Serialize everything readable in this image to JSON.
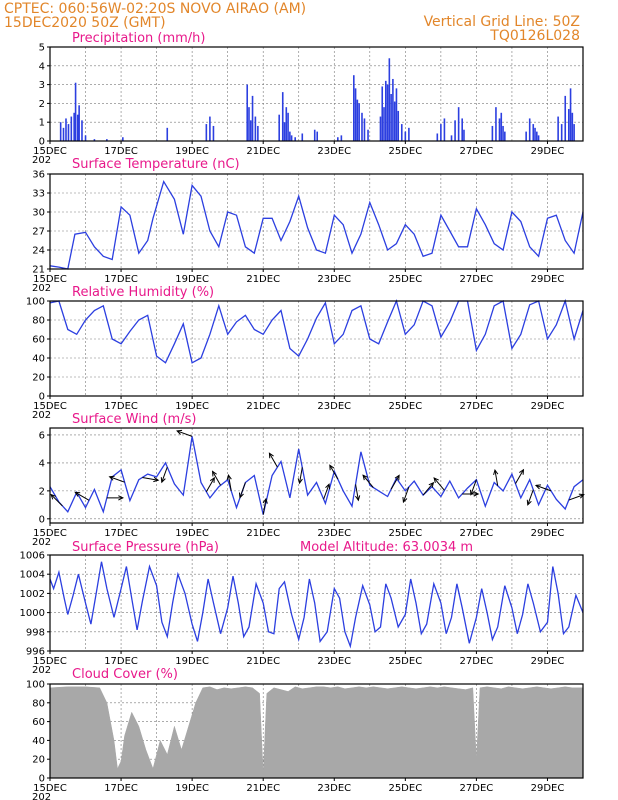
{
  "header": {
    "left_line1": "CPTEC:   060:56W-02:20S   NOVO AIRAO (AM)",
    "left_line2": "15DEC2020 50Z (GMT)",
    "right_line1": "Vertical Grid Line: 50Z",
    "right_line2": "TQ0126L028"
  },
  "colors": {
    "header": "#e2862a",
    "title": "#e8198b",
    "series": "#2c3fe0",
    "cloud": "#a8a8a8",
    "wind_arrow": "#000000"
  },
  "x_axis": {
    "labels": [
      "15DEC",
      "17DEC",
      "19DEC",
      "21DEC",
      "23DEC",
      "25DEC",
      "27DEC",
      "29DEC"
    ],
    "label_positions_days": [
      0,
      2,
      4,
      6,
      8,
      10,
      12,
      14
    ],
    "range_days": [
      0,
      15
    ],
    "corner_label": "202"
  },
  "chart_data": [
    {
      "type": "bar",
      "title": "Precipitation (mm/h)",
      "ylim": [
        0,
        5
      ],
      "yticks": [
        0,
        1,
        2,
        3,
        4,
        5
      ],
      "x_units": "days since 15DEC2020",
      "x": [
        0.3,
        0.38,
        0.45,
        0.52,
        0.6,
        0.68,
        0.72,
        0.78,
        0.82,
        0.9,
        1.0,
        1.25,
        1.6,
        2.05,
        3.3,
        4.4,
        4.5,
        4.6,
        5.55,
        5.6,
        5.65,
        5.7,
        5.78,
        5.85,
        6.45,
        6.55,
        6.6,
        6.65,
        6.7,
        6.75,
        6.8,
        6.9,
        7.1,
        7.45,
        7.52,
        8.1,
        8.2,
        8.55,
        8.6,
        8.65,
        8.7,
        8.78,
        8.85,
        8.95,
        9.3,
        9.35,
        9.4,
        9.45,
        9.5,
        9.55,
        9.6,
        9.65,
        9.7,
        9.75,
        9.8,
        9.9,
        10.0,
        10.1,
        10.9,
        11.0,
        11.1,
        11.3,
        11.4,
        11.5,
        11.6,
        11.65,
        12.45,
        12.55,
        12.65,
        12.7,
        12.75,
        12.8,
        13.4,
        13.5,
        13.6,
        13.65,
        13.7,
        13.75,
        14.3,
        14.4,
        14.5,
        14.6,
        14.65,
        14.7,
        14.75
      ],
      "values": [
        1.0,
        0.7,
        1.2,
        0.9,
        1.3,
        1.5,
        3.1,
        1.4,
        1.9,
        1.1,
        0.3,
        0.1,
        0.1,
        0.2,
        0.7,
        0.9,
        1.3,
        0.8,
        3.0,
        1.8,
        1.1,
        2.4,
        1.3,
        0.8,
        1.4,
        2.6,
        1.0,
        1.8,
        1.5,
        0.5,
        0.3,
        0.2,
        0.4,
        0.6,
        0.5,
        0.2,
        0.3,
        3.5,
        2.8,
        2.2,
        2.0,
        1.5,
        1.2,
        0.6,
        1.3,
        2.9,
        1.8,
        3.2,
        3.0,
        4.4,
        2.5,
        3.3,
        2.1,
        2.8,
        1.6,
        0.9,
        0.5,
        0.7,
        0.4,
        0.9,
        1.2,
        0.3,
        1.1,
        1.8,
        1.2,
        0.6,
        0.8,
        1.8,
        1.2,
        1.5,
        0.8,
        0.5,
        0.5,
        1.2,
        0.9,
        0.7,
        0.5,
        0.3,
        1.3,
        0.9,
        2.4,
        1.7,
        2.8,
        1.5,
        0.9
      ]
    },
    {
      "type": "line",
      "title": "Surface Temperature (nC)",
      "ylim": [
        21,
        36
      ],
      "yticks": [
        21,
        24,
        27,
        30,
        33,
        36
      ],
      "x_units": "days since 15DEC2020",
      "x": [
        0.0,
        0.25,
        0.5,
        0.7,
        1.0,
        1.25,
        1.5,
        1.75,
        2.0,
        2.25,
        2.5,
        2.75,
        2.9,
        3.2,
        3.5,
        3.75,
        4.0,
        4.25,
        4.5,
        4.75,
        5.0,
        5.25,
        5.5,
        5.75,
        6.0,
        6.25,
        6.5,
        6.75,
        7.0,
        7.25,
        7.5,
        7.75,
        8.0,
        8.25,
        8.5,
        8.75,
        9.0,
        9.25,
        9.5,
        9.75,
        10.0,
        10.25,
        10.5,
        10.75,
        11.0,
        11.25,
        11.5,
        11.75,
        12.0,
        12.25,
        12.5,
        12.75,
        13.0,
        13.25,
        13.5,
        13.75,
        14.0,
        14.25,
        14.5,
        14.75,
        15.0
      ],
      "values": [
        21.5,
        21.3,
        21.0,
        26.5,
        26.8,
        24.5,
        23.0,
        22.5,
        30.8,
        29.5,
        23.5,
        25.5,
        29.0,
        34.8,
        32.0,
        26.5,
        34.2,
        32.5,
        27.0,
        24.5,
        30.0,
        29.5,
        24.5,
        23.5,
        29.0,
        29.0,
        25.5,
        28.5,
        32.5,
        27.5,
        24.0,
        23.5,
        29.5,
        28.0,
        23.5,
        26.5,
        31.5,
        28.0,
        24.0,
        25.0,
        28.0,
        26.5,
        23.0,
        23.5,
        29.5,
        27.0,
        24.5,
        24.5,
        30.5,
        28.0,
        25.0,
        24.0,
        30.0,
        28.5,
        24.5,
        23.0,
        29.0,
        29.5,
        25.5,
        23.5,
        30.0
      ]
    },
    {
      "type": "line",
      "title": "Relative Humidity (%)",
      "ylim": [
        0,
        100
      ],
      "yticks": [
        0,
        20,
        40,
        60,
        80,
        100
      ],
      "x_units": "days since 15DEC2020",
      "x": [
        0.0,
        0.25,
        0.5,
        0.75,
        1.0,
        1.25,
        1.5,
        1.75,
        2.0,
        2.25,
        2.5,
        2.75,
        3.0,
        3.25,
        3.5,
        3.75,
        4.0,
        4.25,
        4.5,
        4.75,
        5.0,
        5.25,
        5.5,
        5.75,
        6.0,
        6.25,
        6.5,
        6.75,
        7.0,
        7.25,
        7.5,
        7.75,
        8.0,
        8.25,
        8.5,
        8.75,
        9.0,
        9.25,
        9.5,
        9.75,
        10.0,
        10.25,
        10.5,
        10.75,
        11.0,
        11.25,
        11.5,
        11.75,
        12.0,
        12.25,
        12.5,
        12.75,
        13.0,
        13.25,
        13.5,
        13.75,
        14.0,
        14.25,
        14.5,
        14.75,
        15.0
      ],
      "values": [
        98,
        100,
        70,
        65,
        80,
        90,
        95,
        60,
        55,
        68,
        80,
        85,
        42,
        35,
        55,
        76,
        35,
        40,
        65,
        95,
        65,
        78,
        85,
        70,
        65,
        80,
        90,
        50,
        42,
        60,
        82,
        98,
        55,
        65,
        90,
        95,
        60,
        55,
        78,
        100,
        65,
        75,
        100,
        95,
        62,
        78,
        100,
        100,
        48,
        65,
        95,
        100,
        50,
        65,
        96,
        100,
        60,
        75,
        100,
        60,
        90
      ]
    },
    {
      "type": "line",
      "title": "Surface Wind (m/s)",
      "ylim": [
        -0.3,
        6.5
      ],
      "yticks": [
        0,
        2,
        4,
        6
      ],
      "x_units": "days since 15DEC2020",
      "x": [
        0.0,
        0.25,
        0.5,
        0.75,
        1.0,
        1.25,
        1.5,
        1.75,
        2.0,
        2.25,
        2.5,
        2.75,
        3.0,
        3.25,
        3.5,
        3.75,
        4.0,
        4.25,
        4.5,
        4.75,
        5.0,
        5.25,
        5.5,
        5.75,
        6.0,
        6.25,
        6.5,
        6.75,
        7.0,
        7.25,
        7.5,
        7.75,
        8.0,
        8.25,
        8.5,
        8.75,
        9.0,
        9.25,
        9.5,
        9.75,
        10.0,
        10.25,
        10.5,
        10.75,
        11.0,
        11.25,
        11.5,
        11.75,
        12.0,
        12.25,
        12.5,
        12.75,
        13.0,
        13.25,
        13.5,
        13.75,
        14.0,
        14.25,
        14.5,
        14.75,
        15.0
      ],
      "values": [
        2.3,
        1.2,
        0.5,
        1.9,
        0.8,
        2.1,
        0.5,
        3.0,
        3.5,
        1.3,
        2.8,
        3.2,
        3.0,
        4.0,
        2.5,
        1.7,
        5.9,
        2.6,
        1.5,
        2.3,
        2.8,
        0.8,
        2.6,
        3.1,
        0.3,
        3.1,
        4.1,
        1.5,
        5.0,
        1.7,
        2.6,
        1.1,
        3.4,
        2.0,
        0.9,
        4.8,
        2.4,
        2.0,
        1.6,
        2.9,
        2.0,
        2.7,
        1.7,
        2.3,
        1.6,
        2.7,
        1.5,
        2.2,
        2.8,
        0.9,
        2.6,
        2.0,
        3.2,
        1.5,
        2.8,
        1.0,
        2.4,
        1.4,
        0.7,
        2.3,
        2.8
      ],
      "arrows": [
        {
          "day": 0.35,
          "dir_deg": 315
        },
        {
          "day": 1.1,
          "dir_deg": 300
        },
        {
          "day": 1.6,
          "dir_deg": 90
        },
        {
          "day": 2.1,
          "dir_deg": 290
        },
        {
          "day": 2.6,
          "dir_deg": 100
        },
        {
          "day": 3.3,
          "dir_deg": 200
        },
        {
          "day": 4.0,
          "dir_deg": 290
        },
        {
          "day": 4.4,
          "dir_deg": 30
        },
        {
          "day": 4.8,
          "dir_deg": 330
        },
        {
          "day": 5.1,
          "dir_deg": 350
        },
        {
          "day": 5.5,
          "dir_deg": 200
        },
        {
          "day": 6.0,
          "dir_deg": 10
        },
        {
          "day": 6.4,
          "dir_deg": 330
        },
        {
          "day": 7.1,
          "dir_deg": 190
        },
        {
          "day": 7.7,
          "dir_deg": 20
        },
        {
          "day": 8.1,
          "dir_deg": 330
        },
        {
          "day": 8.6,
          "dir_deg": 170
        },
        {
          "day": 9.1,
          "dir_deg": 320
        },
        {
          "day": 9.6,
          "dir_deg": 30
        },
        {
          "day": 10.1,
          "dir_deg": 200
        },
        {
          "day": 10.5,
          "dir_deg": 40
        },
        {
          "day": 11.1,
          "dir_deg": 320
        },
        {
          "day": 11.6,
          "dir_deg": 90
        },
        {
          "day": 12.0,
          "dir_deg": 200
        },
        {
          "day": 12.6,
          "dir_deg": 350
        },
        {
          "day": 13.1,
          "dir_deg": 30
        },
        {
          "day": 13.6,
          "dir_deg": 200
        },
        {
          "day": 14.1,
          "dir_deg": 290
        },
        {
          "day": 14.6,
          "dir_deg": 70
        }
      ]
    },
    {
      "type": "line",
      "title": "Surface Pressure (hPa)",
      "annotation": "Model Altitude: 63.0034 m",
      "ylim": [
        996,
        1006
      ],
      "yticks": [
        996,
        998,
        1000,
        1002,
        1004,
        1006
      ],
      "x_units": "days since 15DEC2020",
      "x": [
        0.0,
        0.1,
        0.25,
        0.4,
        0.5,
        0.65,
        0.8,
        1.0,
        1.15,
        1.3,
        1.45,
        1.6,
        1.8,
        2.0,
        2.15,
        2.3,
        2.45,
        2.6,
        2.8,
        3.0,
        3.15,
        3.3,
        3.45,
        3.6,
        3.8,
        4.0,
        4.15,
        4.3,
        4.45,
        4.6,
        4.8,
        5.0,
        5.15,
        5.3,
        5.45,
        5.6,
        5.8,
        6.0,
        6.15,
        6.3,
        6.45,
        6.6,
        6.8,
        7.0,
        7.15,
        7.3,
        7.45,
        7.6,
        7.8,
        8.0,
        8.15,
        8.3,
        8.45,
        8.6,
        8.8,
        9.0,
        9.15,
        9.3,
        9.45,
        9.6,
        9.8,
        10.0,
        10.15,
        10.3,
        10.45,
        10.6,
        10.8,
        11.0,
        11.15,
        11.3,
        11.45,
        11.6,
        11.8,
        12.0,
        12.15,
        12.3,
        12.45,
        12.6,
        12.8,
        13.0,
        13.15,
        13.3,
        13.45,
        13.6,
        13.8,
        14.0,
        14.15,
        14.3,
        14.45,
        14.6,
        14.8,
        15.0
      ],
      "values": [
        1003.5,
        1002.5,
        1004.2,
        1001.5,
        999.8,
        1001.8,
        1004.0,
        1001.0,
        998.8,
        1002.0,
        1005.3,
        1002.5,
        999.5,
        1002.5,
        1004.8,
        1001.5,
        998.2,
        1001.2,
        1004.8,
        1002.8,
        999.0,
        997.5,
        1001.0,
        1004.0,
        1002.0,
        998.8,
        997.0,
        1000.0,
        1003.5,
        1001.0,
        997.8,
        1000.5,
        1003.8,
        1001.0,
        997.5,
        998.5,
        1003.0,
        1001.0,
        998.0,
        997.8,
        1002.5,
        1003.2,
        999.8,
        997.2,
        999.5,
        1003.5,
        1001.0,
        997.0,
        998.0,
        1002.5,
        1001.5,
        998.0,
        996.5,
        999.5,
        1002.8,
        1000.8,
        998.0,
        998.5,
        1003.0,
        1001.5,
        998.5,
        999.8,
        1003.5,
        1001.0,
        997.8,
        998.8,
        1003.0,
        1001.0,
        997.8,
        999.5,
        1003.0,
        1000.5,
        996.8,
        999.5,
        1002.5,
        1000.0,
        997.2,
        998.5,
        1002.8,
        1000.5,
        997.8,
        999.8,
        1003.0,
        1001.0,
        998.0,
        999.0,
        1004.8,
        1002.0,
        997.8,
        998.5,
        1001.8,
        1000.0
      ]
    },
    {
      "type": "area",
      "title": "Cloud Cover (%)",
      "ylim": [
        0,
        100
      ],
      "yticks": [
        0,
        20,
        40,
        60,
        80,
        100
      ],
      "x_units": "days since 15DEC2020",
      "x": [
        0.0,
        0.5,
        1.0,
        1.4,
        1.6,
        1.8,
        1.9,
        2.0,
        2.1,
        2.3,
        2.5,
        2.7,
        2.9,
        3.1,
        3.3,
        3.5,
        3.7,
        3.9,
        4.1,
        4.3,
        4.5,
        4.7,
        4.9,
        5.1,
        5.3,
        5.5,
        5.7,
        5.9,
        6.0,
        6.1,
        6.3,
        6.5,
        6.7,
        6.9,
        7.1,
        7.3,
        7.5,
        7.7,
        7.9,
        8.1,
        8.3,
        8.5,
        8.7,
        8.9,
        9.1,
        9.3,
        9.5,
        9.7,
        9.9,
        10.1,
        10.3,
        10.5,
        10.7,
        10.9,
        11.1,
        11.3,
        11.5,
        11.7,
        11.9,
        12.0,
        12.1,
        12.3,
        12.5,
        12.7,
        12.9,
        13.1,
        13.3,
        13.5,
        13.7,
        13.9,
        14.1,
        14.3,
        14.5,
        14.7,
        15.0
      ],
      "values": [
        96,
        97,
        97,
        96,
        80,
        40,
        10,
        18,
        45,
        70,
        55,
        30,
        10,
        40,
        25,
        55,
        30,
        55,
        80,
        96,
        97,
        94,
        96,
        95,
        96,
        97,
        96,
        90,
        5,
        90,
        96,
        94,
        92,
        97,
        95,
        96,
        97,
        97,
        96,
        97,
        95,
        96,
        97,
        96,
        97,
        96,
        95,
        96,
        97,
        96,
        95,
        96,
        97,
        96,
        97,
        96,
        95,
        94,
        96,
        20,
        96,
        97,
        96,
        95,
        97,
        96,
        95,
        96,
        97,
        96,
        95,
        96,
        97,
        96,
        96
      ]
    }
  ]
}
